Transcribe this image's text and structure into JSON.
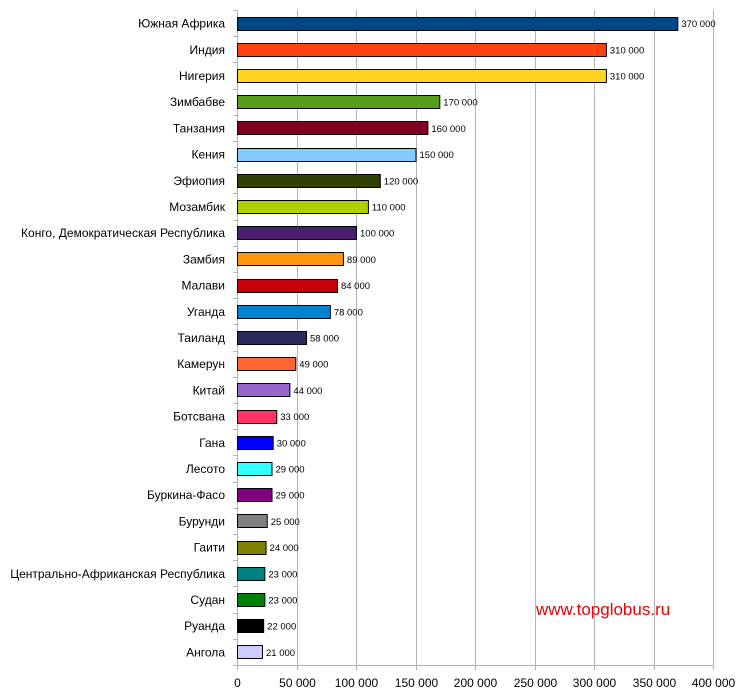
{
  "watermark": "www.topglobus.ru",
  "chart_data": {
    "type": "bar",
    "orientation": "horizontal",
    "categories": [
      "Южная Африка",
      "Индия",
      "Нигерия",
      "Зимбабве",
      "Танзания",
      "Кения",
      "Эфиопия",
      "Мозамбик",
      "Конго, Демократическая Республика",
      "Замбия",
      "Малави",
      "Уганда",
      "Таиланд",
      "Камерун",
      "Китай",
      "Ботсвана",
      "Гана",
      "Лесото",
      "Буркина-Фасо",
      "Бурунди",
      "Гаити",
      "Центрально-Африканская Республика",
      "Судан",
      "Руанда",
      "Ангола"
    ],
    "values": [
      370000,
      310000,
      310000,
      170000,
      160000,
      150000,
      120000,
      110000,
      100000,
      89000,
      84000,
      78000,
      58000,
      49000,
      44000,
      33000,
      30000,
      29000,
      29000,
      25000,
      24000,
      23000,
      23000,
      22000,
      21000
    ],
    "value_labels": [
      "370 000",
      "310 000",
      "310 000",
      "170 000",
      "160 000",
      "150 000",
      "120 000",
      "110 000",
      "100 000",
      "89 000",
      "84 000",
      "78 000",
      "58 000",
      "49 000",
      "44 000",
      "33 000",
      "30 000",
      "29 000",
      "29 000",
      "25 000",
      "24 000",
      "23 000",
      "23 000",
      "22 000",
      "21 000"
    ],
    "colors": [
      "#004586",
      "#ff420e",
      "#ffd320",
      "#579d1c",
      "#7e0021",
      "#83caff",
      "#314004",
      "#aecf00",
      "#4b1f6f",
      "#ff950e",
      "#c5000b",
      "#0084d1",
      "#2a2a5a",
      "#ff6633",
      "#9966cc",
      "#ff3366",
      "#0000ff",
      "#33ffff",
      "#800080",
      "#808080",
      "#808000",
      "#008080",
      "#008000",
      "#000000",
      "#ccccff"
    ],
    "x_ticks": [
      0,
      50000,
      100000,
      150000,
      200000,
      250000,
      300000,
      350000,
      400000
    ],
    "x_tick_labels": [
      "0",
      "50 000",
      "100 000",
      "150 000",
      "200 000",
      "250 000",
      "300 000",
      "350 000",
      "400 000"
    ],
    "xlim": [
      0,
      400000
    ],
    "grid": "vertical"
  }
}
